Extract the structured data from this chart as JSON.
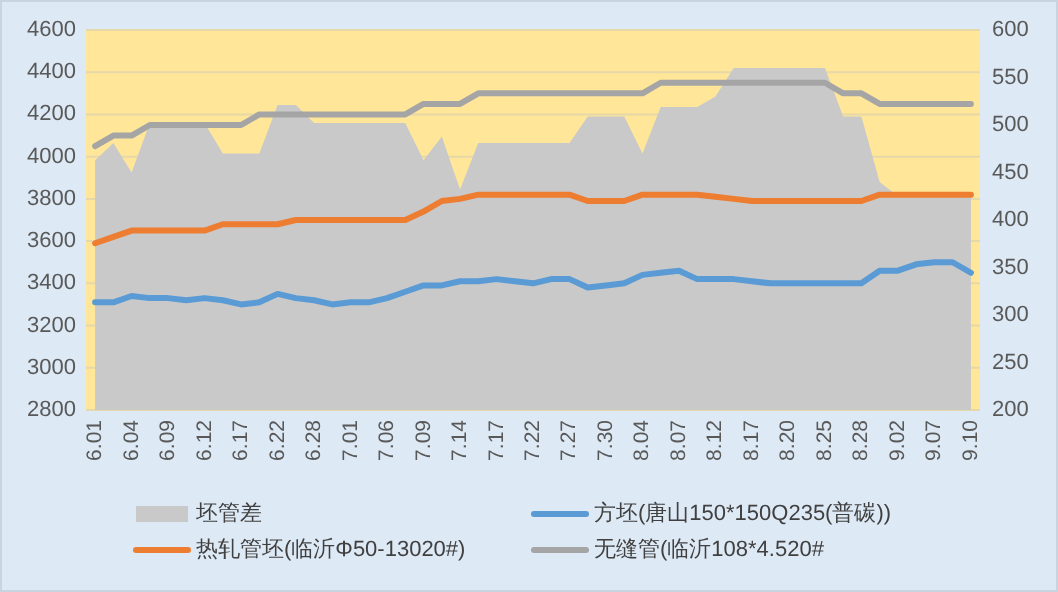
{
  "chart_data": {
    "type": "line",
    "categories": [
      "6.01",
      null,
      "6.04",
      null,
      "6.09",
      null,
      "6.12",
      null,
      "6.17",
      null,
      "6.22",
      null,
      "6.28",
      null,
      "7.01",
      null,
      "7.06",
      null,
      "7.09",
      null,
      "7.14",
      null,
      "7.17",
      null,
      "7.22",
      null,
      "7.27",
      null,
      "7.30",
      null,
      "8.04",
      null,
      "8.07",
      null,
      "8.12",
      null,
      "8.17",
      null,
      "8.20",
      null,
      "8.25",
      null,
      "8.28",
      null,
      "9.02",
      null,
      "9.07",
      null,
      "9.10"
    ],
    "series": [
      {
        "name": "坯管差",
        "type": "area",
        "axis": "y2",
        "color": "#c9c9c9",
        "values": [
          463,
          481,
          450,
          502,
          502,
          502,
          502,
          470,
          470,
          470,
          521,
          521,
          502,
          502,
          502,
          502,
          502,
          502,
          463,
          488,
          432,
          481,
          481,
          481,
          481,
          481,
          481,
          509,
          509,
          509,
          470,
          519,
          519,
          519,
          530,
          560,
          560,
          560,
          560,
          560,
          560,
          509,
          509,
          440,
          425,
          425,
          425,
          425,
          425
        ]
      },
      {
        "name": "方坯(唐山150*150Q235(普碳))",
        "color": "#5b9bd5",
        "values": [
          3310,
          3310,
          3340,
          3330,
          3330,
          3320,
          3330,
          3320,
          3300,
          3310,
          3350,
          3330,
          3320,
          3300,
          3310,
          3310,
          3330,
          3360,
          3390,
          3390,
          3410,
          3410,
          3420,
          3410,
          3400,
          3420,
          3420,
          3380,
          3390,
          3400,
          3440,
          3450,
          3460,
          3420,
          3420,
          3420,
          3410,
          3400,
          3400,
          3400,
          3400,
          3400,
          3400,
          3460,
          3460,
          3490,
          3500,
          3500,
          3450
        ]
      },
      {
        "name": "热轧管坯(临沂Φ50-13020#)",
        "color": "#ed7d31",
        "values": [
          3590,
          3620,
          3650,
          3650,
          3650,
          3650,
          3650,
          3680,
          3680,
          3680,
          3680,
          3700,
          3700,
          3700,
          3700,
          3700,
          3700,
          3700,
          3740,
          3790,
          3800,
          3820,
          3820,
          3820,
          3820,
          3820,
          3820,
          3790,
          3790,
          3790,
          3820,
          3820,
          3820,
          3820,
          3810,
          3800,
          3790,
          3790,
          3790,
          3790,
          3790,
          3790,
          3790,
          3820,
          3820,
          3820,
          3820,
          3820,
          3820
        ]
      },
      {
        "name": "无缝管(临沂108*4.520#",
        "color": "#a5a5a5",
        "values": [
          4050,
          4100,
          4100,
          4150,
          4150,
          4150,
          4150,
          4150,
          4150,
          4200,
          4200,
          4200,
          4200,
          4200,
          4200,
          4200,
          4200,
          4200,
          4250,
          4250,
          4250,
          4300,
          4300,
          4300,
          4300,
          4300,
          4300,
          4300,
          4300,
          4300,
          4300,
          4350,
          4350,
          4350,
          4350,
          4350,
          4350,
          4350,
          4350,
          4350,
          4350,
          4300,
          4300,
          4250,
          4250,
          4250,
          4250,
          4250,
          4250
        ]
      }
    ],
    "ylim": [
      2800,
      4600
    ],
    "yticks": [
      2800,
      3000,
      3200,
      3400,
      3600,
      3800,
      4000,
      4200,
      4400,
      4600
    ],
    "y2lim": [
      200,
      600
    ],
    "y2ticks": [
      200,
      250,
      300,
      350,
      400,
      450,
      500,
      550,
      600
    ],
    "bands": [
      {
        "axis": "y",
        "from": 2800,
        "to": 4600,
        "color": "#ffe699"
      }
    ],
    "grid": "y",
    "legend": "bottom",
    "marker": "none",
    "line_style": "solid"
  }
}
